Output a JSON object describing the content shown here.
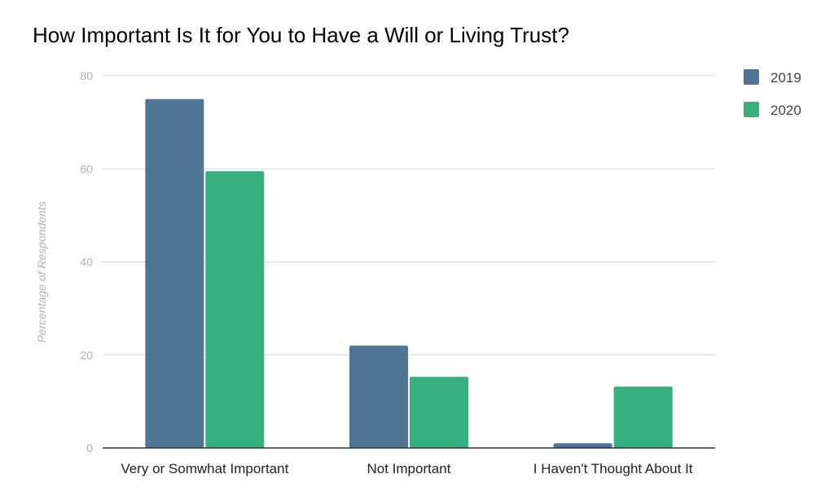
{
  "chart_data": {
    "type": "bar",
    "title": "How Important Is It for You to Have a Will or Living Trust?",
    "xlabel": "",
    "ylabel": "Percentage of Respondents",
    "categories": [
      "Very or Somwhat Important",
      "Not Important",
      "I Haven't Thought About It"
    ],
    "series": [
      {
        "name": "2019",
        "color": "#4f7494",
        "values": [
          75,
          22,
          1
        ]
      },
      {
        "name": "2020",
        "color": "#36b07f",
        "values": [
          59.5,
          15.3,
          13.2
        ]
      }
    ],
    "ylim": [
      0,
      80
    ],
    "yticks": [
      0,
      20,
      40,
      60,
      80
    ],
    "grid": true,
    "legend": "right"
  }
}
